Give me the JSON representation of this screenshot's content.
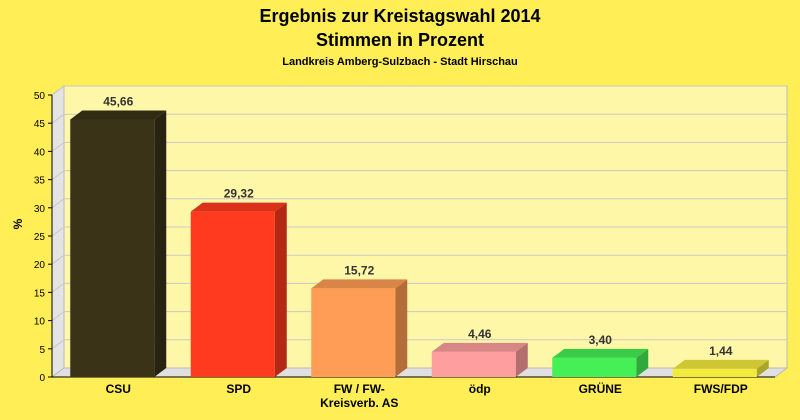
{
  "chart_data": {
    "type": "bar",
    "title": "Ergebnis zur Kreistagswahl 2014",
    "subtitle": "Stimmen in Prozent",
    "caption": "Landkreis Amberg-Sulzbach - Stadt Hirschau",
    "ylabel": "%",
    "xlabel": "",
    "ylim": [
      0,
      50
    ],
    "yticks": [
      0,
      5,
      10,
      15,
      20,
      25,
      30,
      35,
      40,
      45,
      50
    ],
    "grid": true,
    "categories": [
      [
        "CSU"
      ],
      [
        "SPD"
      ],
      [
        "FW / FW-",
        "Kreisverb. AS"
      ],
      [
        "ödp"
      ],
      [
        "GRÜNE"
      ],
      [
        "FWS/FDP"
      ]
    ],
    "values": [
      45.66,
      29.32,
      15.72,
      4.46,
      3.4,
      1.44
    ],
    "data_labels": [
      "45,66",
      "29,32",
      "15,72",
      "4,46",
      "3,40",
      "1,44"
    ],
    "colors": [
      "#3a3318",
      "#ff3a1e",
      "#ff9c55",
      "#ff9e9e",
      "#44f055",
      "#f2ea3c"
    ]
  }
}
